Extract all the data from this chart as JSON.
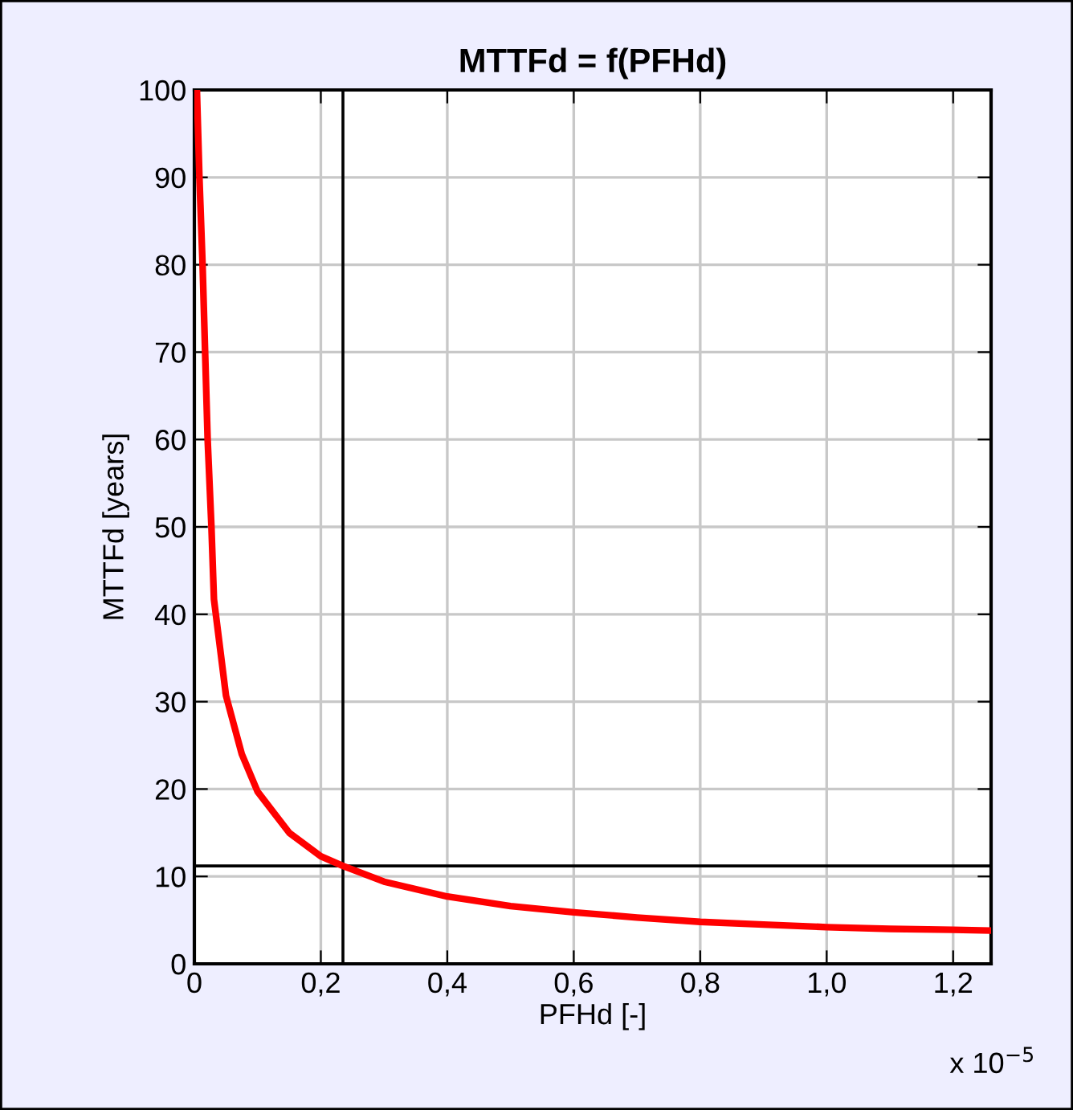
{
  "chart_data": {
    "type": "line",
    "title": "MTTFd = f(PFHd)",
    "xlabel": "PFHd [-]",
    "ylabel": "MTTFd [years]",
    "annotations": [
      "x 10$^{−5}$"
    ],
    "series": [
      {
        "color": "#ff0000",
        "x": [
          0.004,
          0.008,
          0.013,
          0.017,
          0.021,
          0.027,
          0.031,
          0.05,
          0.075,
          0.1,
          0.15,
          0.2,
          0.235,
          0.3,
          0.4,
          0.5,
          0.6,
          0.7,
          0.8,
          0.9,
          1.0,
          1.1,
          1.2,
          1.26
        ],
        "values": [
          100,
          90,
          80,
          70,
          60,
          50,
          41.7,
          30.7,
          24,
          19.7,
          15,
          12.3,
          11.2,
          9.4,
          7.7,
          6.6,
          5.9,
          5.3,
          4.8,
          4.5,
          4.2,
          4.0,
          3.9,
          3.8
        ]
      }
    ],
    "xlim": [
      0,
      1.26
    ],
    "ylim": [
      0,
      100
    ],
    "xticks": [
      0,
      {
        "value": 0.2,
        "label": "0,2"
      },
      {
        "value": 0.4,
        "label": "0,4"
      },
      {
        "value": 0.6,
        "label": "0,6"
      },
      {
        "value": 0.8,
        "label": "0,8"
      },
      {
        "value": 1.0,
        "label": "1,0"
      },
      {
        "value": 1.2,
        "label": "1,2"
      }
    ],
    "yticks": [
      0,
      10,
      20,
      30,
      40,
      50,
      60,
      70,
      80,
      90,
      100
    ],
    "ref_lines": [
      {
        "axis": "x",
        "value": 0.235,
        "color": "#000000"
      },
      {
        "axis": "y",
        "value": 11.2,
        "color": "#000000"
      }
    ],
    "grid": true,
    "legend": false,
    "line_style": "solid",
    "marker": "none"
  }
}
